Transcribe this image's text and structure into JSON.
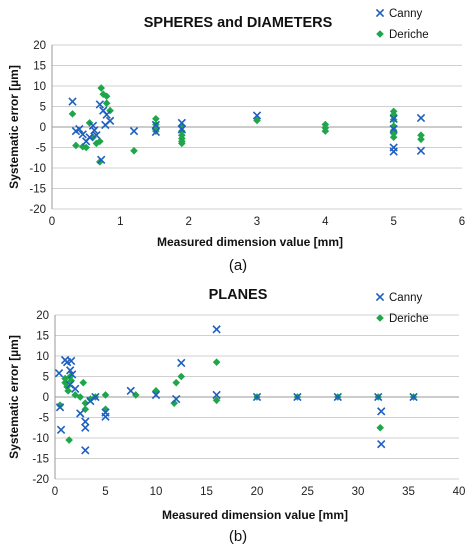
{
  "colors": {
    "canny": "#1f5fbf",
    "deriche": "#1fa64a",
    "grid": "#d0d0d0"
  },
  "chart_data": [
    {
      "type": "scatter",
      "title": "SPHERES and DIAMETERS",
      "xlabel": "Measured  dimension value [mm]",
      "ylabel": "Systematic error [µm]",
      "caption": "(a)",
      "xlim": [
        0,
        6
      ],
      "ylim": [
        -20,
        20
      ],
      "xticks": [
        "0",
        "1",
        "2",
        "3",
        "4",
        "5",
        "6"
      ],
      "yticks": [
        "20",
        "15",
        "10",
        "5",
        "0",
        "-5",
        "-10",
        "-15",
        "-20"
      ],
      "grid": true,
      "legend_position": "top-right",
      "series": [
        {
          "name": "Canny",
          "marker": "x",
          "points": [
            [
              0.3,
              6.2
            ],
            [
              0.35,
              -1.0
            ],
            [
              0.4,
              -0.5
            ],
            [
              0.45,
              -1.8
            ],
            [
              0.5,
              -3.5
            ],
            [
              0.55,
              -2.5
            ],
            [
              0.6,
              0.3
            ],
            [
              0.62,
              -0.8
            ],
            [
              0.65,
              -2.0
            ],
            [
              0.7,
              5.5
            ],
            [
              0.72,
              -8.0
            ],
            [
              0.75,
              4.0
            ],
            [
              0.78,
              0.5
            ],
            [
              0.8,
              3.0
            ],
            [
              0.85,
              1.5
            ],
            [
              1.2,
              -1.0
            ],
            [
              1.52,
              -1.2
            ],
            [
              1.52,
              0.5
            ],
            [
              1.9,
              1.0
            ],
            [
              1.9,
              -0.6
            ],
            [
              3.0,
              2.8
            ],
            [
              5.0,
              2.0
            ],
            [
              5.0,
              -0.5
            ],
            [
              5.0,
              -5.0
            ],
            [
              5.0,
              -6.0
            ],
            [
              5.4,
              2.2
            ],
            [
              5.4,
              -5.8
            ]
          ]
        },
        {
          "name": "Deriche",
          "marker": "diamond",
          "points": [
            [
              0.3,
              3.2
            ],
            [
              0.35,
              -4.5
            ],
            [
              0.45,
              -4.8
            ],
            [
              0.5,
              -5.0
            ],
            [
              0.55,
              1.0
            ],
            [
              0.6,
              -2.5
            ],
            [
              0.65,
              -4.0
            ],
            [
              0.7,
              -3.5
            ],
            [
              0.7,
              -8.5
            ],
            [
              0.72,
              9.5
            ],
            [
              0.75,
              8.0
            ],
            [
              0.8,
              7.5
            ],
            [
              0.8,
              5.8
            ],
            [
              0.85,
              4.0
            ],
            [
              1.2,
              -5.8
            ],
            [
              1.52,
              2.0
            ],
            [
              1.52,
              0.6
            ],
            [
              1.52,
              -0.2
            ],
            [
              1.52,
              -1.0
            ],
            [
              1.9,
              0.2
            ],
            [
              1.9,
              -1.0
            ],
            [
              1.9,
              -2.0
            ],
            [
              1.9,
              -2.8
            ],
            [
              1.9,
              -3.5
            ],
            [
              1.9,
              -4.0
            ],
            [
              3.0,
              1.6
            ],
            [
              4.0,
              0.6
            ],
            [
              4.0,
              -0.2
            ],
            [
              4.0,
              -1.0
            ],
            [
              5.0,
              3.8
            ],
            [
              5.0,
              3.0
            ],
            [
              5.0,
              1.8
            ],
            [
              5.0,
              0.2
            ],
            [
              5.0,
              -0.8
            ],
            [
              5.0,
              -1.6
            ],
            [
              5.0,
              -2.5
            ],
            [
              5.4,
              -2.0
            ],
            [
              5.4,
              -3.0
            ]
          ]
        }
      ]
    },
    {
      "type": "scatter",
      "title": "PLANES",
      "xlabel": "Measured dimension value [mm]",
      "ylabel": "Systematic error [µm]",
      "caption": "(b)",
      "xlim": [
        0,
        40
      ],
      "ylim": [
        -20,
        20
      ],
      "xticks": [
        "0",
        "5",
        "10",
        "15",
        "20",
        "25",
        "30",
        "35",
        "40"
      ],
      "yticks": [
        "20",
        "15",
        "10",
        "5",
        "0",
        "-5",
        "-10",
        "-15",
        "-20"
      ],
      "grid": true,
      "legend_position": "top-right",
      "series": [
        {
          "name": "Canny",
          "marker": "x",
          "points": [
            [
              0.4,
              5.8
            ],
            [
              0.5,
              -2.5
            ],
            [
              0.6,
              -8.0
            ],
            [
              1.0,
              9.0
            ],
            [
              1.2,
              8.5
            ],
            [
              1.5,
              6.5
            ],
            [
              1.5,
              3.0
            ],
            [
              1.6,
              8.8
            ],
            [
              1.7,
              5.5
            ],
            [
              2.0,
              2.0
            ],
            [
              2.5,
              -4.0
            ],
            [
              3.0,
              -6.0
            ],
            [
              3.0,
              -7.5
            ],
            [
              3.0,
              -13.0
            ],
            [
              3.5,
              -1.0
            ],
            [
              4.0,
              0.0
            ],
            [
              5.0,
              -3.8
            ],
            [
              5.0,
              -4.8
            ],
            [
              7.5,
              1.5
            ],
            [
              10.0,
              0.5
            ],
            [
              12.0,
              -0.5
            ],
            [
              12.5,
              8.3
            ],
            [
              16.0,
              16.5
            ],
            [
              16.0,
              0.5
            ],
            [
              20.0,
              0.0
            ],
            [
              24.0,
              0.0
            ],
            [
              28.0,
              0.0
            ],
            [
              32.0,
              0.0
            ],
            [
              32.3,
              -3.5
            ],
            [
              32.3,
              -11.5
            ],
            [
              35.5,
              0.0
            ]
          ]
        },
        {
          "name": "Deriche",
          "marker": "diamond",
          "points": [
            [
              0.5,
              -2.0
            ],
            [
              1.0,
              4.5
            ],
            [
              1.0,
              3.5
            ],
            [
              1.2,
              2.5
            ],
            [
              1.3,
              1.5
            ],
            [
              1.4,
              -10.5
            ],
            [
              1.5,
              5.0
            ],
            [
              1.6,
              4.0
            ],
            [
              2.0,
              0.5
            ],
            [
              2.5,
              0.0
            ],
            [
              2.8,
              3.5
            ],
            [
              3.0,
              -1.5
            ],
            [
              3.0,
              -3.0
            ],
            [
              3.5,
              -0.5
            ],
            [
              4.0,
              0.0
            ],
            [
              5.0,
              0.5
            ],
            [
              5.0,
              -3.0
            ],
            [
              8.0,
              0.5
            ],
            [
              10.0,
              1.5
            ],
            [
              11.8,
              -1.5
            ],
            [
              12.0,
              3.5
            ],
            [
              12.5,
              5.0
            ],
            [
              16.0,
              8.5
            ],
            [
              16.0,
              -0.8
            ],
            [
              20.0,
              0.0
            ],
            [
              24.0,
              0.0
            ],
            [
              28.0,
              0.0
            ],
            [
              32.0,
              0.0
            ],
            [
              32.2,
              -7.5
            ],
            [
              35.5,
              0.0
            ]
          ]
        }
      ]
    }
  ]
}
